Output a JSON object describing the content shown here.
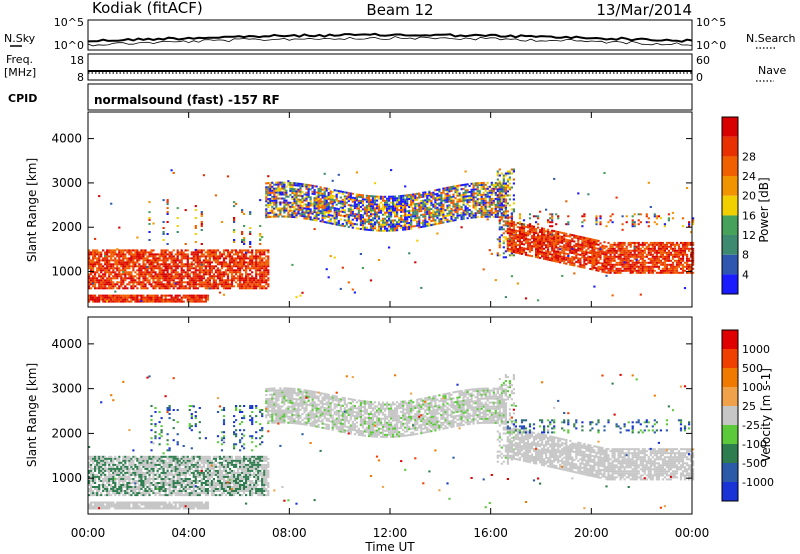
{
  "header": {
    "station": "Kodiak (fitACF)",
    "beam": "Beam 12",
    "date": "13/Mar/2014",
    "cpid_text": "normalsound (fast) -157 RF"
  },
  "strips": {
    "nsky": {
      "left_label": "N.Sky",
      "right_label": "N.Search",
      "left_ticks": [
        "10^5",
        "10^0"
      ],
      "right_ticks": [
        "10^5",
        "10^0"
      ]
    },
    "freq": {
      "left_label_1": "Freq.",
      "left_label_2": "[MHz]",
      "right_label": "Nave",
      "left_ticks": [
        "18",
        "8"
      ],
      "right_ticks": [
        "60",
        "0"
      ]
    },
    "cpid_label": "CPID"
  },
  "chart_data": [
    {
      "type": "heatmap",
      "name": "power",
      "ylabel": "Slant Range [km]",
      "ylim": [
        200,
        4600
      ],
      "yticks": [
        1000,
        2000,
        3000,
        4000
      ],
      "colorbar": {
        "label": "Power [dB]",
        "ticks": [
          "4",
          "8",
          "12",
          "16",
          "20",
          "24",
          "28"
        ],
        "colors": [
          "#1b1bff",
          "#2f57b0",
          "#3d8a70",
          "#46a15a",
          "#f2d000",
          "#f29400",
          "#f06000",
          "#e83000",
          "#d80000"
        ]
      }
    },
    {
      "type": "heatmap",
      "name": "velocity",
      "ylabel": "Slant Range [km]",
      "ylim": [
        200,
        4600
      ],
      "yticks": [
        1000,
        2000,
        3000,
        4000
      ],
      "xlabel": "Time UT",
      "xticks": [
        "00:00",
        "04:00",
        "08:00",
        "12:00",
        "16:00",
        "20:00",
        "00:00"
      ],
      "colorbar": {
        "label": "Velocity [m s-1]",
        "ticks": [
          "1000",
          "500",
          "100",
          "25",
          "-25",
          "-100",
          "-500",
          "-1000"
        ],
        "colors": [
          "#1a33d6",
          "#2a5aa8",
          "#2e7d4e",
          "#5cc93a",
          "#c6c6c6",
          "#f0a24a",
          "#f07a00",
          "#f04000",
          "#e00000"
        ]
      }
    }
  ]
}
